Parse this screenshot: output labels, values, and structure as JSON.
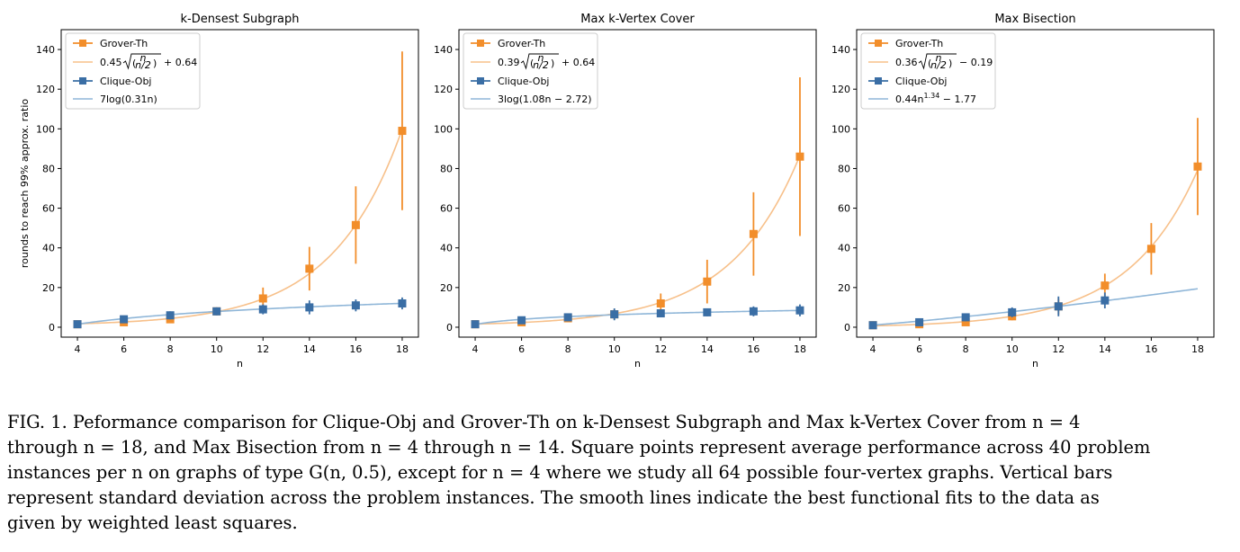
{
  "figure": {
    "colors": {
      "grover": "#f28e2b",
      "grover_fit": "#f7c08a",
      "clique": "#3a6ea5",
      "clique_fit": "#8fb6d8"
    }
  },
  "chart_data": [
    {
      "type": "scatter",
      "title": "k-Densest Subgraph",
      "xlabel": "n",
      "ylabel": "rounds to reach 99% approx. ratio",
      "xlim": [
        3.3,
        18.7
      ],
      "ylim": [
        -5,
        150
      ],
      "xticks": [
        4,
        6,
        8,
        10,
        12,
        14,
        16,
        18
      ],
      "yticks": [
        0,
        20,
        40,
        60,
        80,
        100,
        120,
        140
      ],
      "legend_position": "top-left",
      "series": [
        {
          "name": "Grover-Th",
          "kind": "errorbar",
          "x": [
            4,
            6,
            8,
            10,
            12,
            14,
            16,
            18
          ],
          "y": [
            1.5,
            2.5,
            4,
            8,
            14.5,
            29.5,
            51.5,
            99
          ],
          "err": [
            0.5,
            1.5,
            1.5,
            2,
            5.5,
            11,
            19.5,
            40
          ]
        },
        {
          "name": "0.45√(n choose n/2) + 0.64",
          "kind": "fit",
          "label_parts": {
            "coef": "0.45",
            "const": "+ 0.64"
          },
          "fit": "binom",
          "a": 0.45,
          "b": 0.64,
          "x_range": [
            4,
            18
          ]
        },
        {
          "name": "Clique-Obj",
          "kind": "errorbar",
          "x": [
            4,
            6,
            8,
            10,
            12,
            14,
            16,
            18
          ],
          "y": [
            1.5,
            4,
            6,
            8,
            9,
            10,
            11,
            12
          ],
          "err": [
            0.8,
            1.5,
            2,
            2,
            2.5,
            3.5,
            3,
            3
          ]
        },
        {
          "name": "7log(0.31n)",
          "kind": "fit",
          "label_parts": {
            "expr": "7log(0.31n)"
          },
          "fit": "log",
          "a": 7,
          "b": 0.31,
          "c": 0,
          "x_range": [
            4,
            18
          ]
        }
      ]
    },
    {
      "type": "scatter",
      "title": "Max k-Vertex Cover",
      "xlabel": "n",
      "ylabel": "",
      "xlim": [
        3.3,
        18.7
      ],
      "ylim": [
        -5,
        150
      ],
      "xticks": [
        4,
        6,
        8,
        10,
        12,
        14,
        16,
        18
      ],
      "yticks": [
        0,
        20,
        40,
        60,
        80,
        100,
        120,
        140
      ],
      "legend_position": "top-left",
      "series": [
        {
          "name": "Grover-Th",
          "kind": "errorbar",
          "x": [
            4,
            6,
            8,
            10,
            12,
            14,
            16,
            18
          ],
          "y": [
            1.5,
            2.5,
            4.5,
            6.5,
            12,
            23,
            47,
            86
          ],
          "err": [
            0.5,
            1.5,
            1.5,
            2.5,
            5,
            11,
            21,
            40
          ]
        },
        {
          "name": "0.39√(n choose n/2) + 0.64",
          "kind": "fit",
          "label_parts": {
            "coef": "0.39",
            "const": "+ 0.64"
          },
          "fit": "binom",
          "a": 0.39,
          "b": 0.64,
          "x_range": [
            4,
            18
          ]
        },
        {
          "name": "Clique-Obj",
          "kind": "errorbar",
          "x": [
            4,
            6,
            8,
            10,
            12,
            14,
            16,
            18
          ],
          "y": [
            1.5,
            3.5,
            5,
            6.5,
            7,
            7.5,
            8,
            8.5
          ],
          "err": [
            0.8,
            1.5,
            2,
            3,
            2,
            2,
            2.5,
            3
          ]
        },
        {
          "name": "3log(1.08n − 2.72)",
          "kind": "fit",
          "label_parts": {
            "expr": "3log(1.08n − 2.72)"
          },
          "fit": "log",
          "a": 3,
          "b": 1.08,
          "c": -2.72,
          "x_range": [
            4,
            18
          ]
        }
      ]
    },
    {
      "type": "scatter",
      "title": "Max Bisection",
      "xlabel": "n",
      "ylabel": "",
      "xlim": [
        3.3,
        18.7
      ],
      "ylim": [
        -5,
        150
      ],
      "xticks": [
        4,
        6,
        8,
        10,
        12,
        14,
        16,
        18
      ],
      "yticks": [
        0,
        20,
        40,
        60,
        80,
        100,
        120,
        140
      ],
      "legend_position": "top-left",
      "series": [
        {
          "name": "Grover-Th",
          "kind": "errorbar",
          "x": [
            4,
            6,
            8,
            10,
            12,
            14,
            16,
            18
          ],
          "y": [
            1,
            1.5,
            2.5,
            5.5,
            10.5,
            21,
            39.5,
            81
          ],
          "err": [
            0.5,
            1,
            1.5,
            2,
            4,
            6,
            13,
            24.5
          ]
        },
        {
          "name": "0.36√(n choose n/2) − 0.19",
          "kind": "fit",
          "label_parts": {
            "coef": "0.36",
            "const": "− 0.19"
          },
          "fit": "binom",
          "a": 0.36,
          "b": -0.19,
          "x_range": [
            4,
            18
          ]
        },
        {
          "name": "Clique-Obj",
          "kind": "errorbar",
          "x": [
            4,
            6,
            8,
            10,
            12,
            14
          ],
          "y": [
            1,
            2.5,
            5,
            7.5,
            10.5,
            13.5
          ],
          "err": [
            0.8,
            1.5,
            2,
            2.5,
            5,
            4
          ]
        },
        {
          "name": "0.44n^1.34 − 1.77",
          "kind": "fit",
          "label_parts": {
            "prefix": "0.44n",
            "sup": "1.34",
            "suffix": " − 1.77"
          },
          "fit": "power",
          "a": 0.44,
          "p": 1.34,
          "c": -1.77,
          "x_range": [
            4,
            18
          ]
        }
      ]
    }
  ],
  "caption": {
    "lines": [
      "FIG. 1. Peformance comparison for Clique-Obj and Grover-Th on k-Densest Subgraph and Max k-Vertex Cover from n = 4",
      "through n = 18, and Max Bisection from n = 4 through n = 14. Square points represent average performance across 40 problem",
      "instances per n on graphs of type G(n, 0.5), except for n = 4 where we study all 64 possible four-vertex graphs. Vertical bars",
      "represent standard deviation across the problem instances. The smooth lines indicate the best functional fits to the data as",
      "given by weighted least squares."
    ]
  }
}
